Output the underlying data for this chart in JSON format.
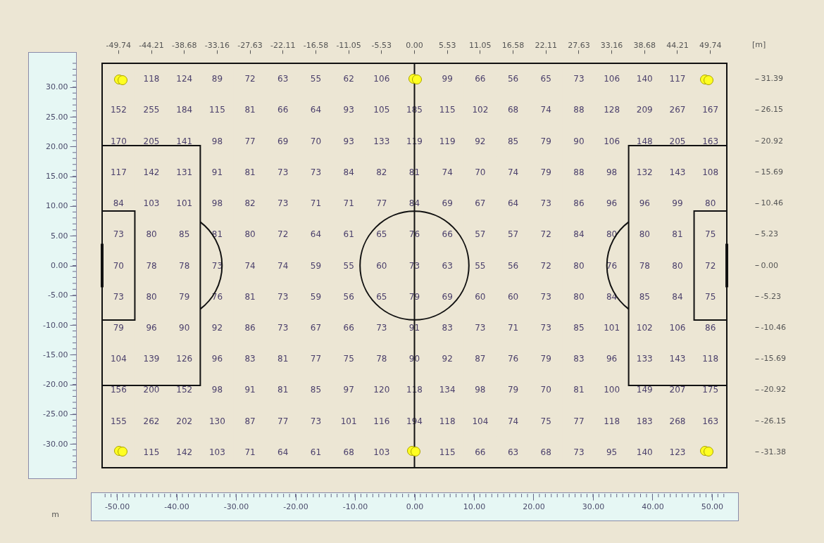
{
  "chart_data": {
    "type": "heatmap",
    "categories": [
      "-49.74",
      "-44.21",
      "-38.68",
      "-33.16",
      "-27.63",
      "-22.11",
      "-16.58",
      "-11.05",
      "-5.53",
      "0.00",
      "5.53",
      "11.05",
      "16.58",
      "22.11",
      "27.63",
      "33.16",
      "38.68",
      "44.21",
      "49.74"
    ],
    "y_categories": [
      "31.39",
      "26.15",
      "20.92",
      "15.69",
      "10.46",
      "5.23",
      "0.00",
      "-5.23",
      "-10.46",
      "-15.69",
      "-20.92",
      "-26.15",
      "-31.38"
    ],
    "cells": [
      [
        null,
        118,
        124,
        89,
        72,
        63,
        55,
        62,
        106,
        null,
        99,
        66,
        56,
        65,
        73,
        106,
        140,
        117,
        null
      ],
      [
        152,
        255,
        184,
        115,
        81,
        66,
        64,
        93,
        105,
        185,
        115,
        102,
        68,
        74,
        88,
        128,
        209,
        267,
        167
      ],
      [
        170,
        205,
        141,
        98,
        77,
        69,
        70,
        93,
        133,
        119,
        119,
        92,
        85,
        79,
        90,
        106,
        148,
        205,
        163
      ],
      [
        117,
        142,
        131,
        91,
        81,
        73,
        73,
        84,
        82,
        81,
        74,
        70,
        74,
        79,
        88,
        98,
        132,
        143,
        108
      ],
      [
        84,
        103,
        101,
        98,
        82,
        73,
        71,
        71,
        77,
        84,
        69,
        67,
        64,
        73,
        86,
        96,
        96,
        99,
        80
      ],
      [
        73,
        80,
        85,
        81,
        80,
        72,
        64,
        61,
        65,
        76,
        66,
        57,
        57,
        72,
        84,
        80,
        80,
        81,
        75
      ],
      [
        70,
        78,
        78,
        73,
        74,
        74,
        59,
        55,
        60,
        73,
        63,
        55,
        56,
        72,
        80,
        76,
        78,
        80,
        72
      ],
      [
        73,
        80,
        79,
        76,
        81,
        73,
        59,
        56,
        65,
        79,
        69,
        60,
        60,
        73,
        80,
        84,
        85,
        84,
        75
      ],
      [
        79,
        96,
        90,
        92,
        86,
        73,
        67,
        66,
        73,
        91,
        83,
        73,
        71,
        73,
        85,
        101,
        102,
        106,
        86
      ],
      [
        104,
        139,
        126,
        96,
        83,
        81,
        77,
        75,
        78,
        90,
        92,
        87,
        76,
        79,
        83,
        96,
        133,
        143,
        118
      ],
      [
        156,
        200,
        152,
        98,
        91,
        81,
        85,
        97,
        120,
        118,
        134,
        98,
        79,
        70,
        81,
        100,
        149,
        207,
        175
      ],
      [
        155,
        262,
        202,
        130,
        87,
        77,
        73,
        101,
        116,
        194,
        118,
        104,
        74,
        75,
        77,
        118,
        183,
        268,
        163
      ],
      [
        null,
        115,
        142,
        103,
        71,
        64,
        61,
        68,
        103,
        null,
        115,
        66,
        63,
        68,
        73,
        95,
        140,
        123,
        null
      ]
    ],
    "data_labels": true,
    "x2label": "m",
    "annotations": [
      "[m]"
    ],
    "x2lim": [
      -52.5,
      52.5
    ],
    "x2ticks": [
      {
        "value": -50,
        "label": "-50.00"
      },
      {
        "value": -40,
        "label": "-40.00"
      },
      {
        "value": -30,
        "label": "-30.00"
      },
      {
        "value": -20,
        "label": "-20.00"
      },
      {
        "value": -10,
        "label": "-10.00"
      },
      {
        "value": 0,
        "label": "0.00"
      },
      {
        "value": 10,
        "label": "10.00"
      },
      {
        "value": 20,
        "label": "20.00"
      },
      {
        "value": 30,
        "label": "30.00"
      },
      {
        "value": 40,
        "label": "40.00"
      },
      {
        "value": 50,
        "label": "50.00"
      }
    ],
    "y2lim": [
      -34,
      34
    ],
    "y2ticks": [
      {
        "value": -30,
        "label": "-30.00"
      },
      {
        "value": -25,
        "label": "-25.00"
      },
      {
        "value": -20,
        "label": "-20.00"
      },
      {
        "value": -15,
        "label": "-15.00"
      },
      {
        "value": -10,
        "label": "-10.00"
      },
      {
        "value": -5,
        "label": "-5.00"
      },
      {
        "value": 0,
        "label": "0.00"
      },
      {
        "value": 5,
        "label": "5.00"
      },
      {
        "value": 10,
        "label": "10.00"
      },
      {
        "value": 15,
        "label": "15.00"
      },
      {
        "value": 20,
        "label": "20.00"
      },
      {
        "value": 25,
        "label": "25.00"
      },
      {
        "value": 30,
        "label": "30.00"
      }
    ]
  }
}
